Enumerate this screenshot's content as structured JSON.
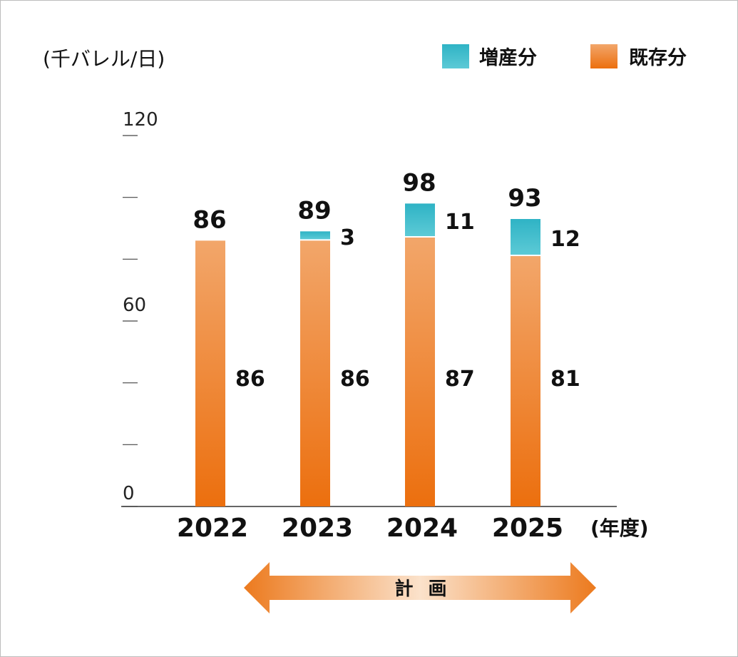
{
  "chart_data": {
    "type": "bar",
    "stacked": true,
    "unit_label": "(千バレル/日)",
    "categories": [
      "2022",
      "2023",
      "2024",
      "2025"
    ],
    "x_unit_label": "(年度)",
    "ylim": [
      0,
      120
    ],
    "y_tick_labels": [
      {
        "value": 0,
        "label": "0"
      },
      {
        "value": 60,
        "label": "60"
      },
      {
        "value": 120,
        "label": "120"
      }
    ],
    "y_minor_ticks": [
      20,
      40,
      80,
      100
    ],
    "series": [
      {
        "name": "既存分",
        "values": [
          86,
          86,
          87,
          81
        ],
        "color_top": "#f2a66a",
        "color_bottom": "#ec6f0e"
      },
      {
        "name": "増産分",
        "values": [
          0,
          3,
          11,
          12
        ],
        "color_top": "#2fb3c5",
        "color_bottom": "#5ccad6"
      }
    ],
    "totals": [
      86,
      89,
      98,
      93
    ],
    "segment_labels": {
      "既存分": [
        "86",
        "86",
        "87",
        "81"
      ],
      "増産分": [
        "",
        "3",
        "11",
        "12"
      ]
    },
    "legend": [
      "増産分",
      "既存分"
    ],
    "legend_position": "top-right",
    "grid": false
  },
  "annotation": {
    "plan_label": "計 画",
    "plan_span": [
      "2023",
      "2025"
    ]
  }
}
